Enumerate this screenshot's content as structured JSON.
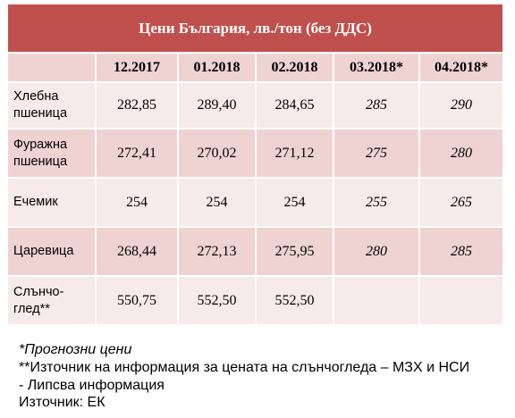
{
  "table": {
    "title": "Цени България, лв./тон (без ДДС)",
    "columns": [
      "12.2017",
      "01.2018",
      "02.2018",
      "03.2018*",
      "04.2018*"
    ],
    "rows": [
      {
        "label_lines": [
          "Хлебна",
          "пшеница"
        ],
        "values": [
          "282,85",
          "289,40",
          "284,65",
          "285",
          "290"
        ]
      },
      {
        "label_lines": [
          "Фуражна",
          "пшеница"
        ],
        "values": [
          "272,41",
          "270,02",
          "271,12",
          "275",
          "280"
        ]
      },
      {
        "label_lines": [
          "Ечемик"
        ],
        "values": [
          "254",
          "254",
          "254",
          "255",
          "265"
        ]
      },
      {
        "label_lines": [
          "Царевица"
        ],
        "values": [
          "268,44",
          "272,13",
          "275,95",
          "280",
          "285"
        ]
      },
      {
        "label_lines": [
          "Слънчо-",
          "глед**"
        ],
        "values": [
          "550,75",
          "552,50",
          "552,50",
          "",
          ""
        ]
      }
    ]
  },
  "notes": {
    "forecast": "*Прогнозни цени",
    "source_sunflower": "**Източник на информация за цената на слънчогледа – МЗХ и НСИ",
    "missing": "- Липсва информация",
    "source": "Източник: ЕК"
  },
  "colors": {
    "title_bg": "#c0504d",
    "dark_row": "#efd3d2",
    "light_row": "#f7eaea"
  }
}
